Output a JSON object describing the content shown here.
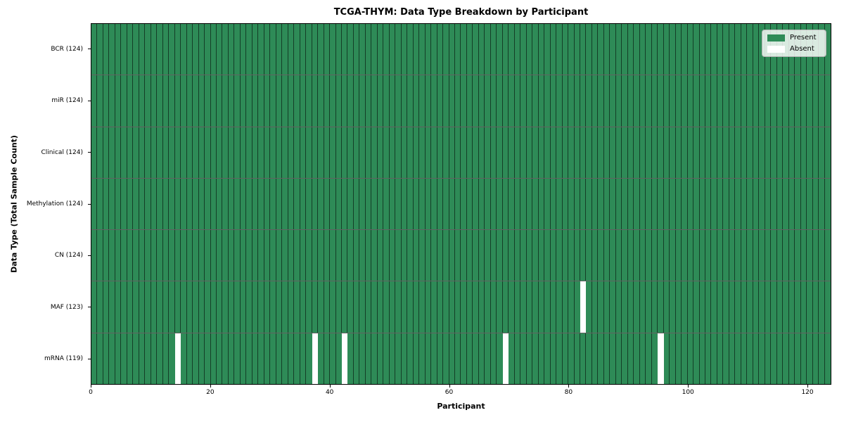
{
  "chart_data": {
    "type": "heatmap",
    "title": "TCGA-THYM: Data Type Breakdown by Participant",
    "xlabel": "Participant",
    "ylabel": "Data Type (Total Sample Count)",
    "n_participants": 124,
    "x_axis_range": [
      0,
      124
    ],
    "x_ticks": [
      0,
      20,
      40,
      60,
      80,
      100,
      120
    ],
    "rows": [
      {
        "label": "BCR (124)",
        "present_count": 124,
        "absent_indices": []
      },
      {
        "label": "miR (124)",
        "present_count": 124,
        "absent_indices": []
      },
      {
        "label": "Clinical (124)",
        "present_count": 124,
        "absent_indices": []
      },
      {
        "label": "Methylation (124)",
        "present_count": 124,
        "absent_indices": []
      },
      {
        "label": "CN (124)",
        "present_count": 124,
        "absent_indices": []
      },
      {
        "label": "MAF (123)",
        "present_count": 123,
        "absent_indices": [
          82
        ]
      },
      {
        "label": "mRNA (119)",
        "present_count": 119,
        "absent_indices": [
          14,
          37,
          42,
          69,
          95
        ]
      }
    ],
    "legend": [
      {
        "label": "Present",
        "color": "#2e8b57"
      },
      {
        "label": "Absent",
        "color": "#ffffff"
      }
    ],
    "colors": {
      "present": "#2e8b57",
      "absent": "#ffffff",
      "cell_edge": "#1f3a2b",
      "spine": "#000000"
    },
    "legend_position": "upper right",
    "grid": "cell-edges"
  }
}
